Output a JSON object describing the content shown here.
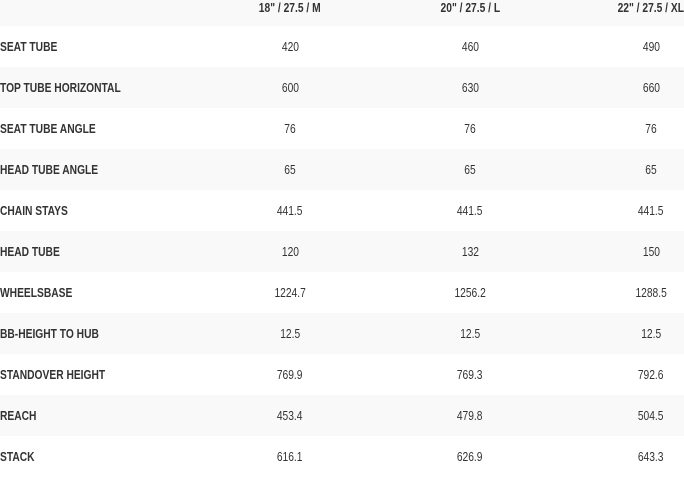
{
  "columns": [
    "18\" / 27.5 / M",
    "20\" / 27.5 / L",
    "22\" / 27.5 / XL"
  ],
  "rows": [
    {
      "label": "SEAT TUBE",
      "values": [
        "420",
        "460",
        "490"
      ]
    },
    {
      "label": "TOP TUBE HORIZONTAL",
      "values": [
        "600",
        "630",
        "660"
      ]
    },
    {
      "label": "SEAT TUBE ANGLE",
      "values": [
        "76",
        "76",
        "76"
      ]
    },
    {
      "label": "HEAD TUBE ANGLE",
      "values": [
        "65",
        "65",
        "65"
      ]
    },
    {
      "label": "CHAIN STAYS",
      "values": [
        "441.5",
        "441.5",
        "441.5"
      ]
    },
    {
      "label": "HEAD TUBE",
      "values": [
        "120",
        "132",
        "150"
      ]
    },
    {
      "label": "WHEELSBASE",
      "values": [
        "1224.7",
        "1256.2",
        "1288.5"
      ]
    },
    {
      "label": "BB-HEIGHT TO HUB",
      "values": [
        "12.5",
        "12.5",
        "12.5"
      ]
    },
    {
      "label": "STANDOVER HEIGHT",
      "values": [
        "769.9",
        "769.3",
        "792.6"
      ]
    },
    {
      "label": "REACH",
      "values": [
        "453.4",
        "479.8",
        "504.5"
      ]
    },
    {
      "label": "STACK",
      "values": [
        "616.1",
        "626.9",
        "643.3"
      ]
    }
  ],
  "colors": {
    "text": "#333333",
    "stripe": "#f9f9f9",
    "background": "#ffffff"
  }
}
